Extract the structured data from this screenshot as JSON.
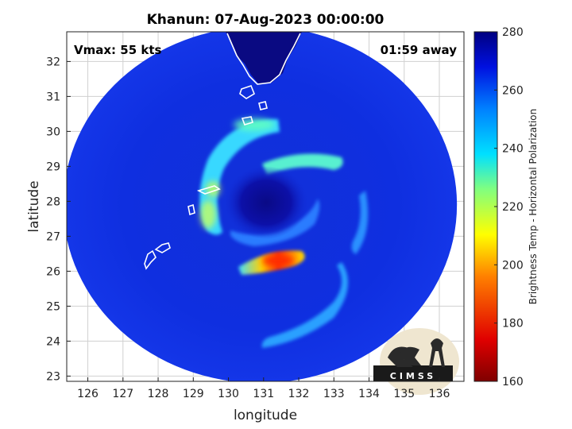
{
  "title": "Khanun: 07-Aug-2023 00:00:00",
  "chart_data": {
    "type": "heatmap",
    "title": "Khanun: 07-Aug-2023 00:00:00",
    "xlabel": "longitude",
    "ylabel": "latitude",
    "x_ticks": [
      126,
      127,
      128,
      129,
      130,
      131,
      132,
      133,
      134,
      135,
      136
    ],
    "y_ticks": [
      23,
      24,
      25,
      26,
      27,
      28,
      29,
      30,
      31,
      32
    ],
    "xlim": [
      125.4,
      136.7
    ],
    "ylim": [
      22.85,
      32.85
    ],
    "grid": true,
    "annotations": {
      "vmax": "Vmax: 55 kts",
      "time_away": "01:59 away"
    },
    "colorbar": {
      "label": "Brightness Temp - Horizontal Polarization",
      "range": [
        160,
        280
      ],
      "ticks": [
        160,
        180,
        200,
        220,
        240,
        260,
        280
      ],
      "colormap": "jet"
    },
    "storm_center": {
      "lon": 130.9,
      "lat": 28.1
    },
    "swath": {
      "center_lon": 130.9,
      "center_lat": 27.9,
      "radius_lon": 5.6,
      "radius_lat": 5.1
    }
  },
  "logo": {
    "text": "CIMSS"
  }
}
